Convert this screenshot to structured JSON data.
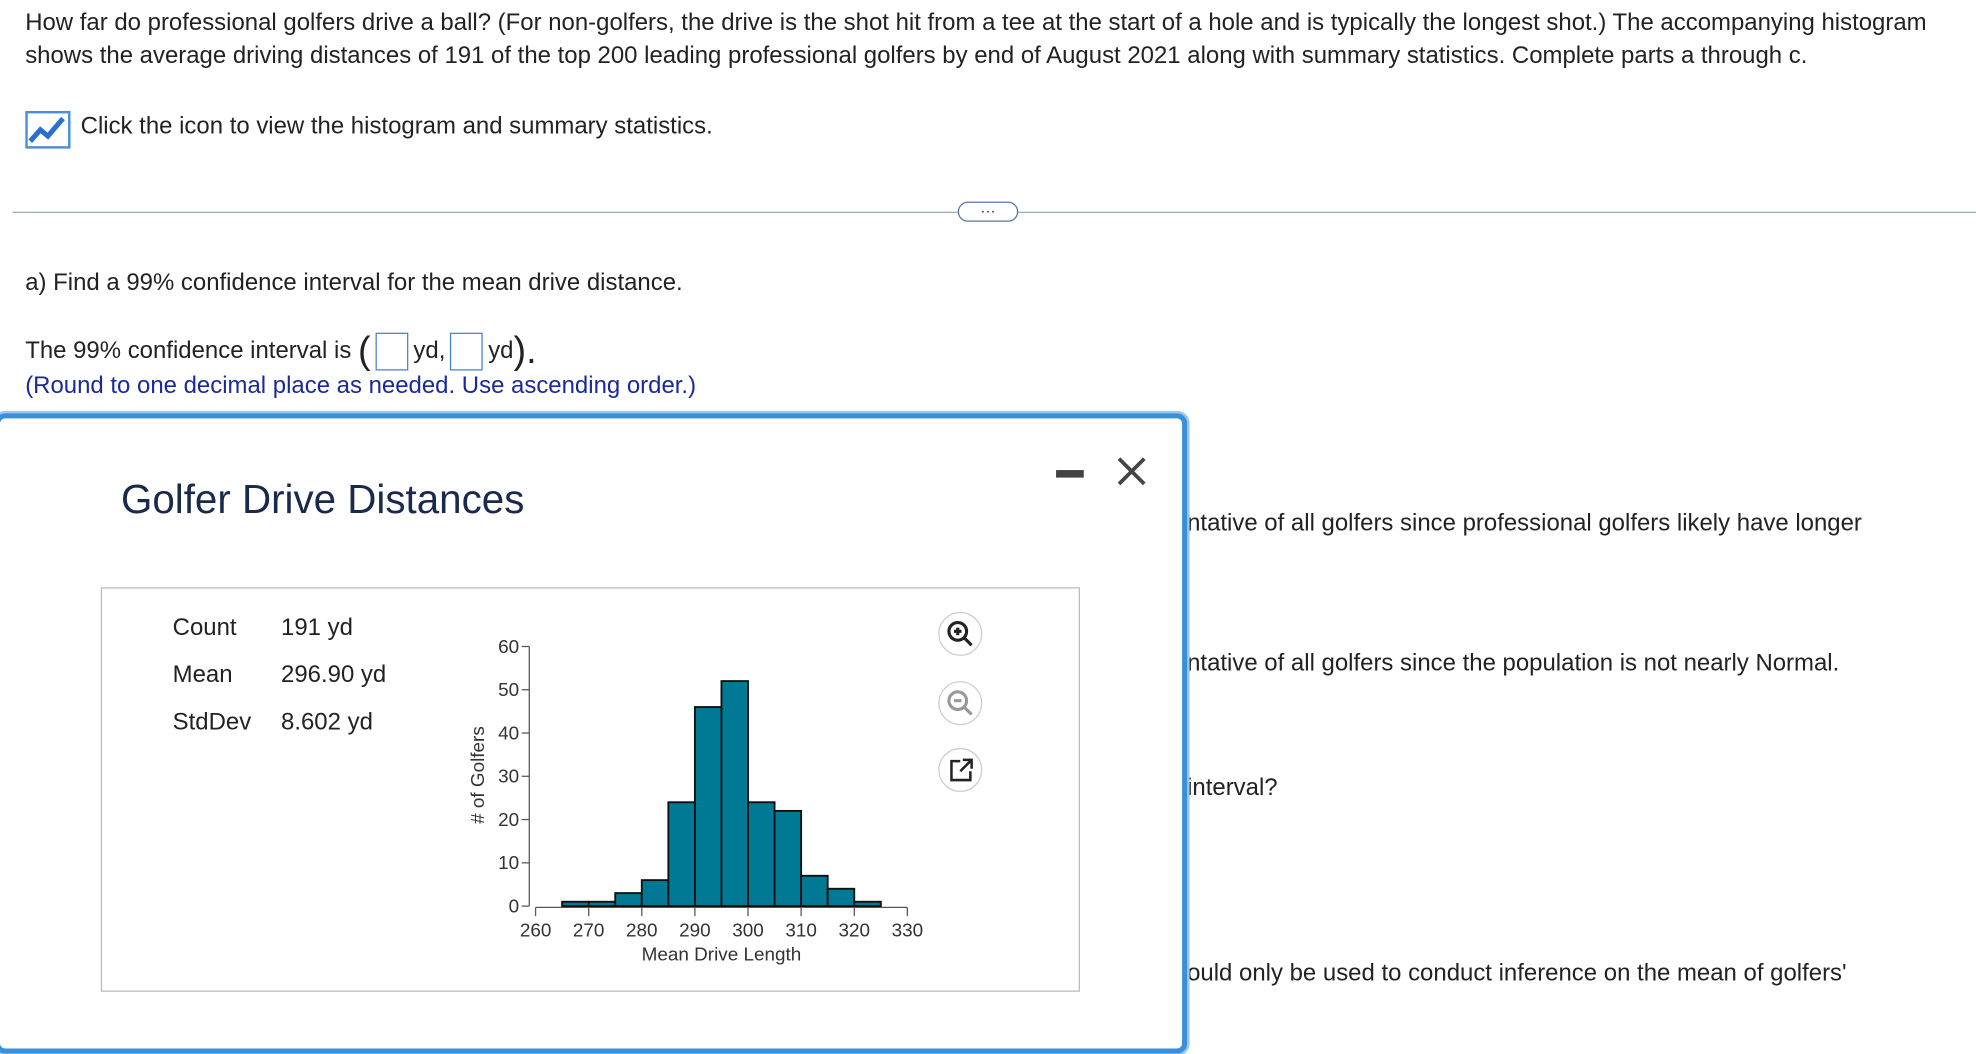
{
  "question": {
    "text": "How far do professional golfers drive a ball? (For non-golfers, the drive is the shot hit from a tee at the start of a hole and is typically the longest shot.) The accompanying histogram shows the average driving distances of 191 of the top 200 leading professional golfers by end of August 2021 along with summary statistics. Complete parts a through c.",
    "icon_link": "Click the icon to view the histogram and summary statistics.",
    "more": "···"
  },
  "part_a": {
    "prompt": "a) Find a 99% confidence interval for the mean drive distance.",
    "prefix": "The 99% confidence interval is",
    "open": "(",
    "unit1": "yd,",
    "unit2": "yd",
    "close": ").",
    "hint": "(Round to one decimal place as needed. Use ascending order.)"
  },
  "background_fragments": [
    "ntative of all golfers since professional golfers likely have longer",
    "ntative of all golfers since the population is not nearly Normal.",
    "interval?",
    "ould only be used to conduct inference on the mean of golfers'"
  ],
  "popup": {
    "title": "Golfer Drive Distances",
    "stats": [
      [
        "Count",
        "191 yd"
      ],
      [
        "Mean",
        "296.90 yd"
      ],
      [
        "StdDev",
        "8.602 yd"
      ]
    ]
  },
  "chart_data": {
    "type": "histogram",
    "y_label": "# of Golfers",
    "x_label": "Mean Drive Length",
    "bins": [
      265,
      270,
      275,
      280,
      285,
      290,
      295,
      300,
      305,
      310,
      315,
      320,
      325
    ],
    "values": [
      1,
      1,
      3,
      6,
      24,
      46,
      52,
      24,
      22,
      7,
      4,
      1
    ],
    "color": "#007a94",
    "xlim": [
      260,
      330
    ],
    "xticks": [
      260,
      270,
      280,
      290,
      300,
      310,
      320,
      330
    ],
    "ylim": [
      0,
      60
    ],
    "yticks": [
      0,
      10,
      20,
      30,
      40,
      50,
      60
    ]
  }
}
